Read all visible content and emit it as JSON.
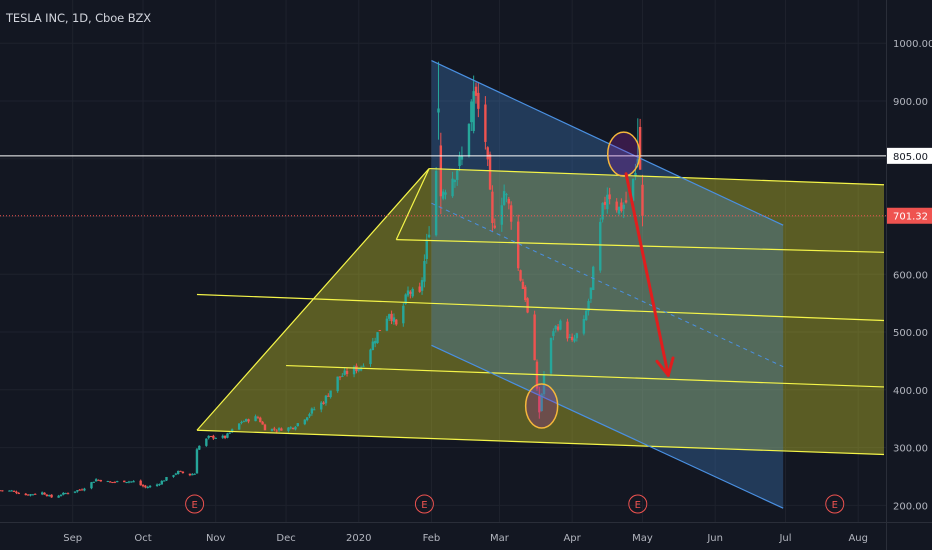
{
  "chart_data": {
    "type": "candlestick",
    "title": "TESLA INC, 1D, Cboe BZX",
    "y_axis": {
      "min": 140,
      "max": 1080,
      "ticks": [
        200,
        300,
        400,
        500,
        600,
        700,
        800,
        900,
        1000
      ],
      "tick_labels": [
        "200.00",
        "300.00",
        "400.00",
        "500.00",
        "600.00",
        "700.00",
        "800.00",
        "900.00",
        "1000.00"
      ],
      "position": "right"
    },
    "x_axis": {
      "start": "2019-08-01",
      "end": "2020-08-12",
      "ticks": [
        {
          "date": "2019-09-01",
          "label": "Sep"
        },
        {
          "date": "2019-10-01",
          "label": "Oct"
        },
        {
          "date": "2019-11-01",
          "label": "Nov"
        },
        {
          "date": "2019-12-01",
          "label": "Dec"
        },
        {
          "date": "2020-01-01",
          "label": "2020"
        },
        {
          "date": "2020-02-01",
          "label": "Feb"
        },
        {
          "date": "2020-03-01",
          "label": "Mar"
        },
        {
          "date": "2020-04-01",
          "label": "Apr"
        },
        {
          "date": "2020-05-01",
          "label": "May"
        },
        {
          "date": "2020-06-01",
          "label": "Jun"
        },
        {
          "date": "2020-07-01",
          "label": "Jul"
        },
        {
          "date": "2020-08-01",
          "label": "Aug"
        }
      ]
    },
    "grid": true,
    "price_path": [
      [
        "2019-08-01",
        226
      ],
      [
        "2019-08-06",
        225
      ],
      [
        "2019-08-12",
        218
      ],
      [
        "2019-08-19",
        222
      ],
      [
        "2019-08-23",
        214
      ],
      [
        "2019-08-29",
        221
      ],
      [
        "2019-09-05",
        228
      ],
      [
        "2019-09-11",
        245
      ],
      [
        "2019-09-17",
        240
      ],
      [
        "2019-09-23",
        242
      ],
      [
        "2019-09-27",
        241
      ],
      [
        "2019-10-02",
        231
      ],
      [
        "2019-10-07",
        236
      ],
      [
        "2019-10-11",
        247
      ],
      [
        "2019-10-16",
        258
      ],
      [
        "2019-10-21",
        253
      ],
      [
        "2019-10-23",
        255
      ],
      [
        "2019-10-24",
        299
      ],
      [
        "2019-10-29",
        318
      ],
      [
        "2019-11-05",
        318
      ],
      [
        "2019-11-12",
        345
      ],
      [
        "2019-11-19",
        352
      ],
      [
        "2019-11-22",
        333
      ],
      [
        "2019-11-27",
        331
      ],
      [
        "2019-12-04",
        335
      ],
      [
        "2019-12-11",
        360
      ],
      [
        "2019-12-17",
        380
      ],
      [
        "2019-12-23",
        420
      ],
      [
        "2019-12-27",
        430
      ],
      [
        "2020-01-02",
        440
      ],
      [
        "2020-01-08",
        490
      ],
      [
        "2020-01-14",
        535
      ],
      [
        "2020-01-17",
        510
      ],
      [
        "2020-01-22",
        569
      ],
      [
        "2020-01-27",
        564
      ],
      [
        "2020-01-30",
        650
      ],
      [
        "2020-02-03",
        780
      ],
      [
        "2020-02-04",
        887
      ],
      [
        "2020-02-05",
        735
      ],
      [
        "2020-02-06",
        748
      ],
      [
        "2020-02-10",
        771
      ],
      [
        "2020-02-14",
        800
      ],
      [
        "2020-02-19",
        917
      ],
      [
        "2020-02-24",
        833
      ],
      [
        "2020-02-27",
        680
      ],
      [
        "2020-03-03",
        745
      ],
      [
        "2020-03-06",
        703
      ],
      [
        "2020-03-09",
        609
      ],
      [
        "2020-03-12",
        560
      ],
      [
        "2020-03-16",
        445
      ],
      [
        "2020-03-18",
        361
      ],
      [
        "2020-03-20",
        427
      ],
      [
        "2020-03-24",
        505
      ],
      [
        "2020-03-27",
        514
      ],
      [
        "2020-04-01",
        481
      ],
      [
        "2020-04-06",
        516
      ],
      [
        "2020-04-09",
        573
      ],
      [
        "2020-04-14",
        709
      ],
      [
        "2020-04-16",
        745
      ],
      [
        "2020-04-21",
        713
      ],
      [
        "2020-04-24",
        725
      ],
      [
        "2020-04-28",
        769
      ],
      [
        "2020-04-30",
        781
      ],
      [
        "2020-05-01",
        701
      ]
    ],
    "ohlc": [
      {
        "date": "2020-02-04",
        "open": 880,
        "high": 968,
        "low": 833,
        "close": 887
      },
      {
        "date": "2020-02-05",
        "open": 823,
        "high": 845,
        "low": 704,
        "close": 735
      },
      {
        "date": "2020-02-19",
        "open": 848,
        "high": 944,
        "low": 844,
        "close": 917
      },
      {
        "date": "2020-03-18",
        "open": 389,
        "high": 405,
        "low": 350,
        "close": 361
      },
      {
        "date": "2020-04-29",
        "open": 790,
        "high": 870,
        "low": 785,
        "close": 800
      },
      {
        "date": "2020-04-30",
        "open": 855,
        "high": 869,
        "low": 781,
        "close": 781
      },
      {
        "date": "2020-05-01",
        "open": 755,
        "high": 772,
        "low": 683,
        "close": 701
      }
    ],
    "horizontal_lines": [
      {
        "value": 805,
        "label": "805.00",
        "style": "solid",
        "color": "#ffffff"
      },
      {
        "value": 701.32,
        "label": "701.32",
        "style": "dotted",
        "color": "#ef5350"
      }
    ],
    "earnings_markers": [
      {
        "date": "2019-10-23",
        "label": "E"
      },
      {
        "date": "2020-01-29",
        "label": "E"
      },
      {
        "date": "2020-04-29",
        "label": "E"
      },
      {
        "date": "2020-07-22",
        "label": "E"
      }
    ],
    "drawings": {
      "pitchfork_yellow": {
        "pivot": {
          "date": "2019-10-24",
          "value": 330
        },
        "top": {
          "date": "2020-01-31",
          "value": 783
        },
        "line_values": [
          {
            "start": {
              "date": "2020-01-31",
              "value": 783
            },
            "end": {
              "date": "2020-08-12",
              "value": 755
            }
          },
          {
            "start": {
              "date": "2020-01-17",
              "value": 660
            },
            "end": {
              "date": "2020-08-12",
              "value": 638
            }
          },
          {
            "start": {
              "date": "2019-10-24",
              "value": 565
            },
            "end": {
              "date": "2020-08-12",
              "value": 520
            }
          },
          {
            "start": {
              "date": "2019-12-01",
              "value": 442
            },
            "end": {
              "date": "2020-08-12",
              "value": 405
            }
          },
          {
            "start": {
              "date": "2019-10-24",
              "value": 330
            },
            "end": {
              "date": "2020-08-12",
              "value": 288
            }
          }
        ]
      },
      "channel_blue": {
        "upper": {
          "start": {
            "date": "2020-02-01",
            "value": 970
          },
          "end": {
            "date": "2020-06-30",
            "value": 685
          }
        },
        "lower": {
          "start": {
            "date": "2020-02-01",
            "value": 477
          },
          "end": {
            "date": "2020-06-30",
            "value": 195
          }
        },
        "midline": {
          "start": {
            "date": "2020-02-01",
            "value": 723
          },
          "end": {
            "date": "2020-06-30",
            "value": 440
          }
        }
      },
      "circles": [
        {
          "date": "2020-03-19",
          "value": 372
        },
        {
          "date": "2020-04-23",
          "value": 808
        }
      ],
      "arrow": {
        "start": {
          "date": "2020-04-24",
          "value": 774
        },
        "end": {
          "date": "2020-05-12",
          "value": 425
        }
      }
    },
    "colors": {
      "background": "#131722",
      "grid": "#1e222d",
      "axis_text": "#b2b5be",
      "up": "#26a69a",
      "down": "#ef5350",
      "pitchfork": "#f5f549",
      "channel": "#4a90e2",
      "arrow": "#e01e1e",
      "earnings": "#ef5350"
    }
  }
}
